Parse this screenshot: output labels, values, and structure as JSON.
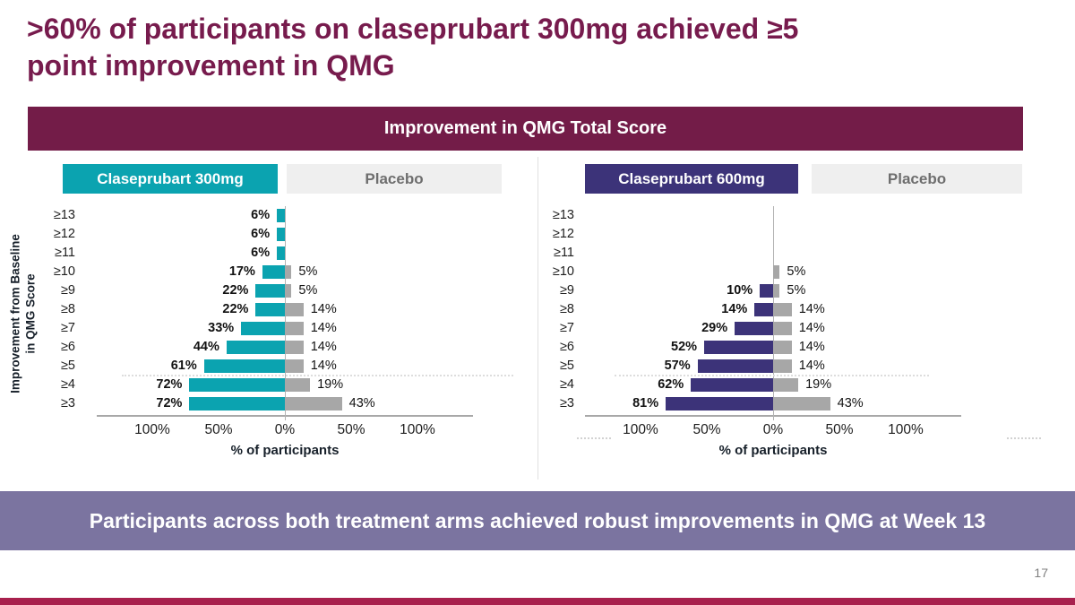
{
  "slide": {
    "title": ">60% of participants on claseprubart 300mg achieved ≥5 point improvement in QMG",
    "title_lines": [
      ">60% of participants on claseprubart 300mg achieved ≥5",
      "point improvement in QMG"
    ],
    "banner": "Improvement in QMG Total Score",
    "takeaway": "Participants across both treatment arms achieved robust improvements in QMG at Week 13",
    "page_number": "17"
  },
  "colors": {
    "title_text": "#771B4D",
    "banner_bg": "#731C48",
    "placebo_button_bg": "#EFEFEF",
    "placebo_button_text": "#6E6E6E",
    "takeaway_bg": "#7B74A0",
    "accent_bar": "#A8204D",
    "page_number": "#7F7F7F"
  },
  "chart_data": {
    "type": "bar",
    "orientation": "horizontal-diverging",
    "title": "Improvement in QMG Total Score",
    "categories": [
      "≥13",
      "≥12",
      "≥11",
      "≥10",
      "≥9",
      "≥8",
      "≥7",
      "≥6",
      "≥5",
      "≥4",
      "≥3"
    ],
    "ylabel": "Improvement from Baseline in QMG Score",
    "ylabel_lines": [
      "Improvement from Baseline",
      "in QMG Score"
    ],
    "xlabel": "% of participants",
    "x_ticks": [
      "100%",
      "50%",
      "0%",
      "50%",
      "100%"
    ],
    "x_axis_range_each_side": [
      0,
      100
    ],
    "grid": "dashed separator between ≥5 and ≥4",
    "legend_position": "top",
    "placebo_color": "#A7A7A7",
    "charts": [
      {
        "treatment_label": "Claseprubart 300mg",
        "placebo_label": "Placebo",
        "color": "#0BA3B0",
        "treatment": [
          6,
          6,
          6,
          17,
          22,
          22,
          33,
          44,
          61,
          72,
          72
        ],
        "placebo": [
          null,
          null,
          null,
          5,
          5,
          14,
          14,
          14,
          14,
          19,
          43
        ]
      },
      {
        "treatment_label": "Claseprubart 600mg",
        "placebo_label": "Placebo",
        "color": "#3C3379",
        "treatment": [
          null,
          null,
          null,
          null,
          10,
          14,
          29,
          52,
          57,
          62,
          81
        ],
        "placebo": [
          null,
          null,
          null,
          5,
          5,
          14,
          14,
          14,
          14,
          19,
          43
        ]
      }
    ]
  }
}
